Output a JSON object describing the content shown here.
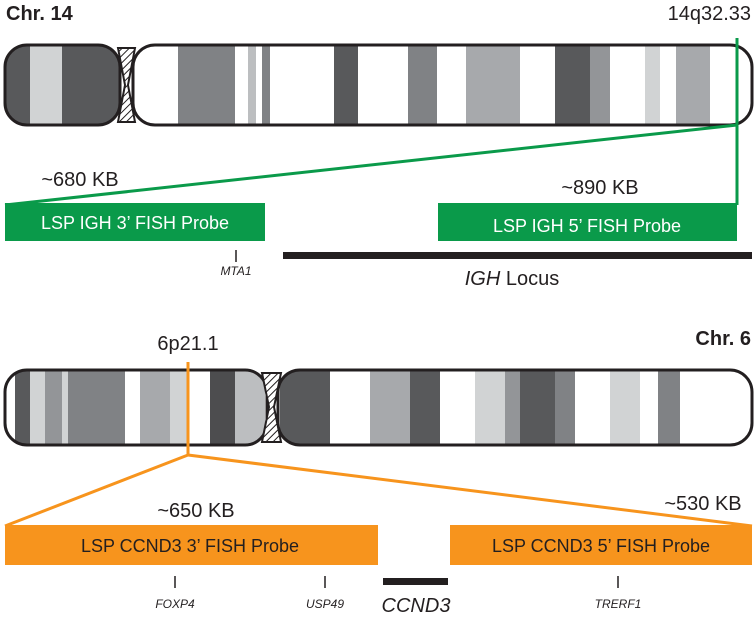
{
  "chromosome_14": {
    "label": "Chr. 14",
    "band": "14q32.33",
    "probes": [
      {
        "size": "~680 KB",
        "label": "LSP IGH 3’ FISH Probe"
      },
      {
        "size": "~890 KB",
        "label": "LSP IGH 5’ FISH Probe"
      }
    ],
    "genes": [
      "MTA1"
    ],
    "locus": {
      "gene": "IGH",
      "label": "Locus"
    }
  },
  "chromosome_6": {
    "label": "Chr. 6",
    "band": "6p21.1",
    "probes": [
      {
        "size": "~650 KB",
        "label": "LSP CCND3 3’ FISH Probe"
      },
      {
        "size": "~530 KB",
        "label": "LSP CCND3 5’ FISH Probe"
      }
    ],
    "genes": [
      "FOXP4",
      "USP49",
      "CCND3",
      "TRERF1"
    ]
  }
}
